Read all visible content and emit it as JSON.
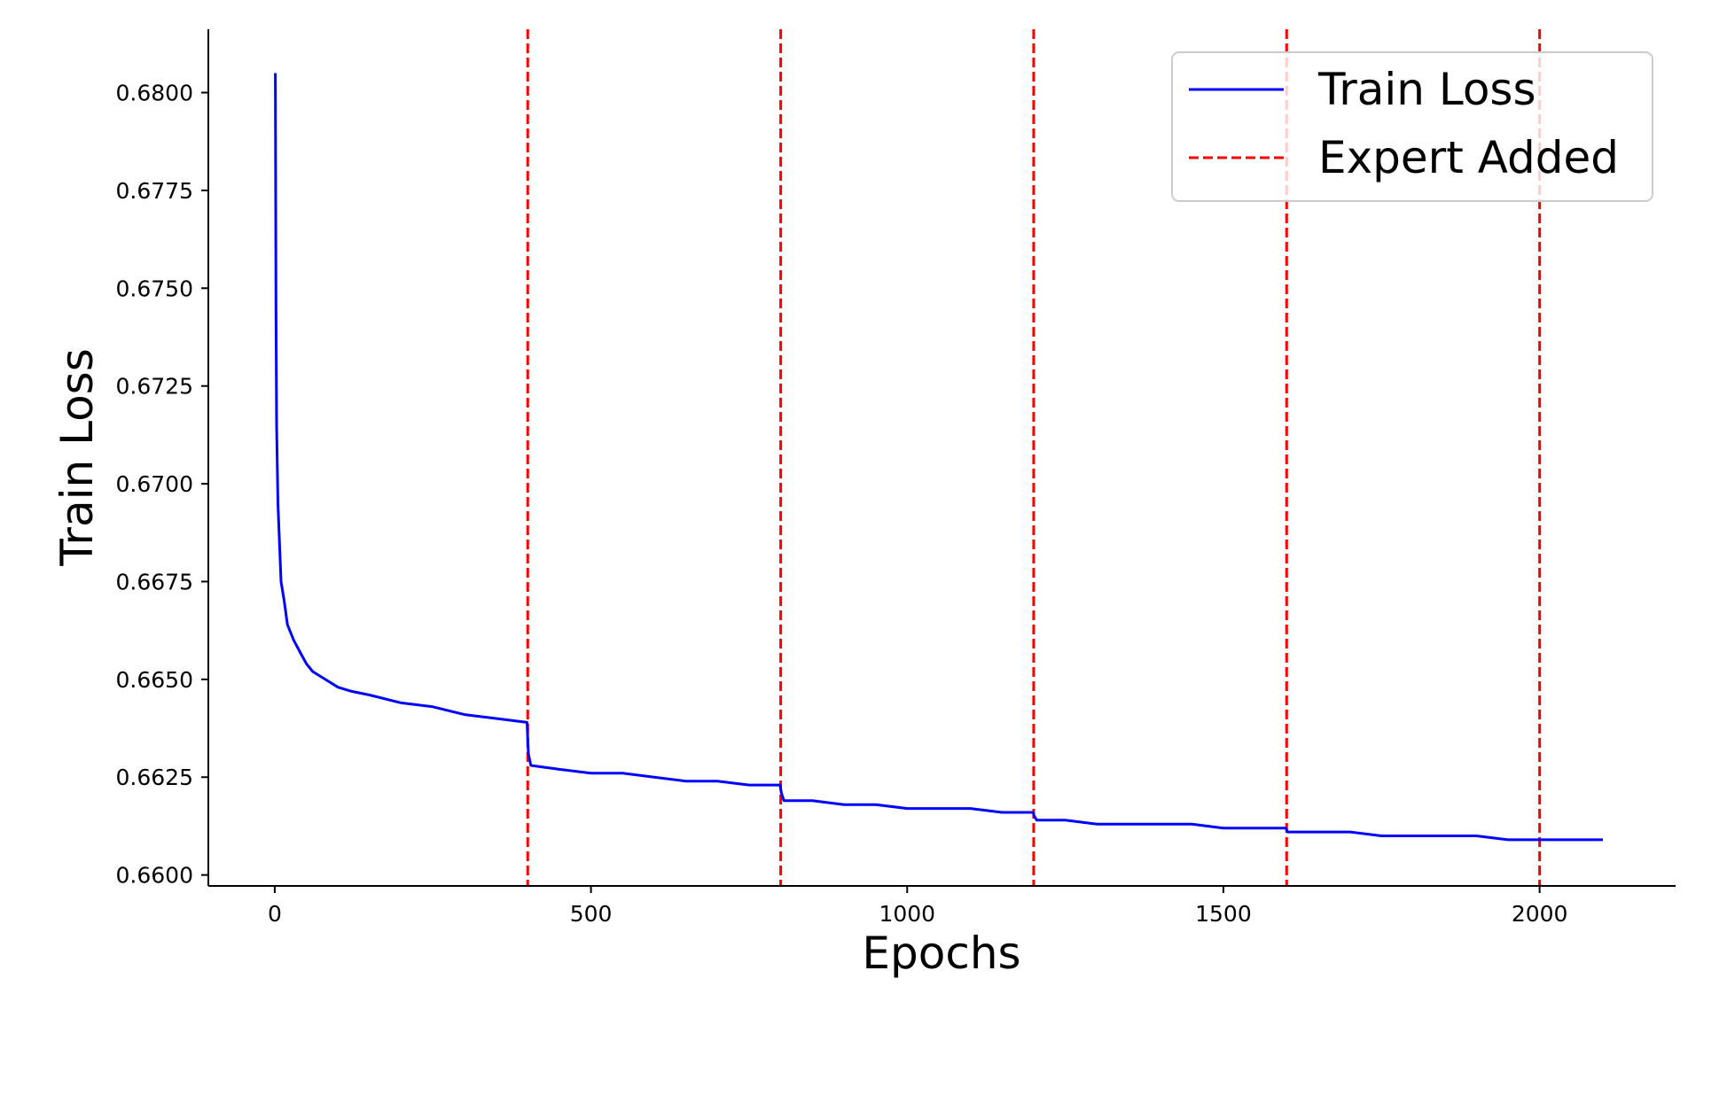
{
  "chart_data": {
    "type": "line",
    "title": "",
    "xlabel": "Epochs",
    "ylabel": "Train Loss",
    "xlim": [
      -105,
      2215
    ],
    "ylim": [
      0.65972,
      0.68162
    ],
    "xticks": [
      0,
      500,
      1000,
      1500,
      2000
    ],
    "xtick_labels": [
      "0",
      "500",
      "1000",
      "1500",
      "2000"
    ],
    "yticks": [
      0.66,
      0.6625,
      0.665,
      0.6675,
      0.67,
      0.6725,
      0.675,
      0.6775,
      0.68
    ],
    "ytick_labels": [
      "0.6600",
      "0.6625",
      "0.6650",
      "0.6675",
      "0.6700",
      "0.6725",
      "0.6750",
      "0.6775",
      "0.6800"
    ],
    "grid": false,
    "legend_position": "top-right",
    "series": [
      {
        "name": "Train Loss",
        "color": "#0000ff",
        "style": "solid",
        "x": [
          1,
          2,
          3,
          5,
          8,
          10,
          15,
          20,
          30,
          40,
          50,
          60,
          80,
          100,
          120,
          150,
          200,
          250,
          300,
          350,
          399,
          401,
          405,
          450,
          500,
          550,
          600,
          650,
          700,
          750,
          799,
          801,
          805,
          850,
          900,
          950,
          1000,
          1050,
          1100,
          1150,
          1199,
          1201,
          1205,
          1250,
          1300,
          1350,
          1400,
          1450,
          1500,
          1550,
          1599,
          1601,
          1605,
          1650,
          1700,
          1750,
          1800,
          1850,
          1900,
          1950,
          1999,
          2001,
          2005,
          2050,
          2100
        ],
        "y": [
          0.6805,
          0.6745,
          0.6715,
          0.6695,
          0.6683,
          0.6675,
          0.667,
          0.6664,
          0.666,
          0.6657,
          0.6654,
          0.6652,
          0.665,
          0.6648,
          0.6647,
          0.6646,
          0.6644,
          0.6643,
          0.6641,
          0.664,
          0.6639,
          0.6631,
          0.6628,
          0.6627,
          0.6626,
          0.6626,
          0.6625,
          0.6624,
          0.6624,
          0.6623,
          0.6623,
          0.6621,
          0.6619,
          0.6619,
          0.6618,
          0.6618,
          0.6617,
          0.6617,
          0.6617,
          0.6616,
          0.6616,
          0.6615,
          0.6614,
          0.6614,
          0.6613,
          0.6613,
          0.6613,
          0.6613,
          0.6612,
          0.6612,
          0.6612,
          0.6611,
          0.6611,
          0.6611,
          0.6611,
          0.661,
          0.661,
          0.661,
          0.661,
          0.6609,
          0.6609,
          0.6609,
          0.6609,
          0.6609,
          0.6609
        ]
      },
      {
        "name": "Expert Added",
        "color": "#ff0000",
        "style": "dashed",
        "vlines": [
          400,
          800,
          1200,
          1600,
          2000
        ]
      }
    ]
  }
}
